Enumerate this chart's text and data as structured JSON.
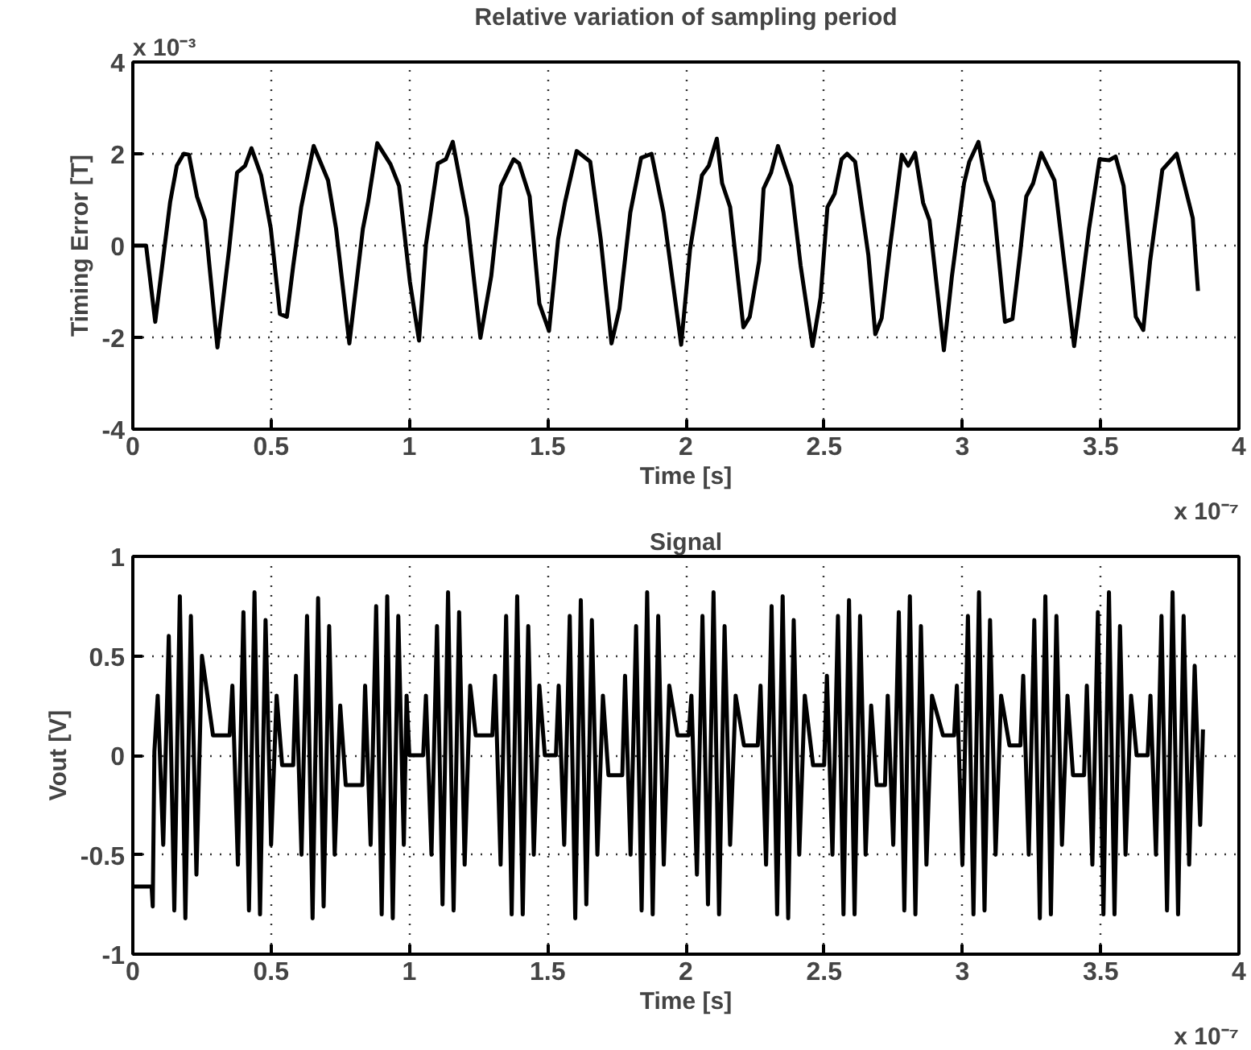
{
  "chart_data": [
    {
      "type": "line",
      "title": "Relative variation of sampling period",
      "xlabel": "Time [s]",
      "ylabel": "Timing Error [T]",
      "annotations": [
        "x 10⁻³",
        "x 10⁻⁷"
      ],
      "xlim": [
        0,
        4
      ],
      "xticks": [
        0,
        0.5,
        1,
        1.5,
        2,
        2.5,
        3,
        3.5,
        4
      ],
      "ylim": [
        -4,
        4
      ],
      "yticks": [
        -4,
        -2,
        0,
        2,
        4
      ],
      "grid": true,
      "line_style": "solid",
      "marker": "none",
      "series": [
        {
          "color": "#000000",
          "x": [
            0,
            0.048,
            0.081,
            0.135,
            0.159,
            0.184,
            0.203,
            0.232,
            0.261,
            0.306,
            0.348,
            0.377,
            0.406,
            0.429,
            0.464,
            0.499,
            0.532,
            0.557,
            0.58,
            0.609,
            0.654,
            0.706,
            0.735,
            0.783,
            0.832,
            0.851,
            0.884,
            0.932,
            0.963,
            1.002,
            1.035,
            1.06,
            1.103,
            1.132,
            1.157,
            1.209,
            1.257,
            1.296,
            1.331,
            1.377,
            1.397,
            1.435,
            1.47,
            1.505,
            1.538,
            1.563,
            1.605,
            1.654,
            1.692,
            1.731,
            1.76,
            1.799,
            1.838,
            1.876,
            1.919,
            1.983,
            2.015,
            2.058,
            2.083,
            2.112,
            2.131,
            2.16,
            2.208,
            2.231,
            2.265,
            2.281,
            2.308,
            2.333,
            2.381,
            2.415,
            2.458,
            2.487,
            2.512,
            2.538,
            2.563,
            2.583,
            2.612,
            2.66,
            2.685,
            2.708,
            2.737,
            2.781,
            2.804,
            2.829,
            2.858,
            2.881,
            2.933,
            2.962,
            3.006,
            3.025,
            3.058,
            3.083,
            3.112,
            3.154,
            3.181,
            3.208,
            3.231,
            3.256,
            3.285,
            3.333,
            3.404,
            3.429,
            3.458,
            3.496,
            3.531,
            3.554,
            3.583,
            3.627,
            3.654,
            3.679,
            3.723,
            3.775,
            3.833,
            3.852
          ],
          "values": [
            0,
            0,
            -1.66,
            0.95,
            1.74,
            2.0,
            1.98,
            1.07,
            0.55,
            -2.22,
            -0.09,
            1.59,
            1.74,
            2.12,
            1.53,
            0.37,
            -1.49,
            -1.55,
            -0.44,
            0.84,
            2.17,
            1.42,
            0.37,
            -2.13,
            0.37,
            0.95,
            2.23,
            1.77,
            1.3,
            -0.79,
            -2.07,
            0.02,
            1.79,
            1.88,
            2.26,
            0.6,
            -2.01,
            -0.67,
            1.3,
            1.88,
            1.79,
            1.07,
            -1.26,
            -1.86,
            0.14,
            0.95,
            2.06,
            1.83,
            0.14,
            -2.13,
            -1.37,
            0.72,
            1.91,
            2.0,
            0.72,
            -2.16,
            -0.09,
            1.53,
            1.74,
            2.33,
            1.36,
            0.84,
            -1.78,
            -1.55,
            -0.33,
            1.24,
            1.59,
            2.17,
            1.3,
            -0.44,
            -2.19,
            -1.14,
            0.84,
            1.13,
            1.88,
            2.0,
            1.83,
            -0.21,
            -1.93,
            -1.58,
            -0.09,
            1.98,
            1.74,
            2.02,
            0.93,
            0.55,
            -2.28,
            -0.67,
            1.36,
            1.83,
            2.26,
            1.42,
            0.95,
            -1.66,
            -1.6,
            -0.21,
            1.07,
            1.36,
            2.02,
            1.42,
            -2.19,
            -1.02,
            0.37,
            1.88,
            1.86,
            1.94,
            1.3,
            -1.55,
            -1.84,
            -0.33,
            1.65,
            2.0,
            0.6,
            -0.99
          ]
        }
      ]
    },
    {
      "type": "line",
      "title": "Signal",
      "xlabel": "Time [s]",
      "ylabel": "Vout [V]",
      "annotations": [
        "x 10⁻⁷"
      ],
      "xlim": [
        0,
        4
      ],
      "xticks": [
        0,
        0.5,
        1,
        1.5,
        2,
        2.5,
        3,
        3.5,
        4
      ],
      "ylim": [
        -1,
        1
      ],
      "yticks": [
        -1,
        -0.5,
        0,
        0.5,
        1
      ],
      "grid": true,
      "line_style": "solid",
      "marker": "none",
      "series": [
        {
          "color": "#000000",
          "x": [
            0,
            0.068,
            0.072,
            0.078,
            0.09,
            0.11,
            0.13,
            0.15,
            0.17,
            0.19,
            0.21,
            0.23,
            0.25,
            0.29,
            0.35,
            0.36,
            0.38,
            0.4,
            0.42,
            0.44,
            0.46,
            0.48,
            0.5,
            0.52,
            0.54,
            0.58,
            0.59,
            0.61,
            0.63,
            0.65,
            0.67,
            0.69,
            0.71,
            0.73,
            0.75,
            0.77,
            0.83,
            0.84,
            0.86,
            0.88,
            0.9,
            0.92,
            0.94,
            0.96,
            0.98,
            0.99,
            1.0,
            1.05,
            1.06,
            1.08,
            1.1,
            1.12,
            1.14,
            1.16,
            1.18,
            1.2,
            1.22,
            1.24,
            1.3,
            1.31,
            1.33,
            1.35,
            1.37,
            1.39,
            1.41,
            1.43,
            1.45,
            1.47,
            1.49,
            1.53,
            1.54,
            1.56,
            1.58,
            1.6,
            1.62,
            1.64,
            1.66,
            1.68,
            1.7,
            1.72,
            1.77,
            1.78,
            1.8,
            1.82,
            1.84,
            1.86,
            1.88,
            1.9,
            1.92,
            1.94,
            1.97,
            2.01,
            2.02,
            2.04,
            2.06,
            2.08,
            2.1,
            2.12,
            2.14,
            2.16,
            2.18,
            2.21,
            2.26,
            2.27,
            2.29,
            2.31,
            2.33,
            2.35,
            2.37,
            2.39,
            2.41,
            2.43,
            2.46,
            2.5,
            2.51,
            2.53,
            2.55,
            2.57,
            2.59,
            2.61,
            2.63,
            2.65,
            2.67,
            2.69,
            2.72,
            2.73,
            2.75,
            2.77,
            2.79,
            2.81,
            2.83,
            2.85,
            2.87,
            2.89,
            2.93,
            2.97,
            2.98,
            3.0,
            3.02,
            3.04,
            3.06,
            3.08,
            3.1,
            3.12,
            3.14,
            3.17,
            3.21,
            3.22,
            3.24,
            3.26,
            3.28,
            3.3,
            3.32,
            3.34,
            3.36,
            3.38,
            3.4,
            3.44,
            3.45,
            3.47,
            3.49,
            3.51,
            3.53,
            3.55,
            3.57,
            3.59,
            3.61,
            3.63,
            3.67,
            3.68,
            3.7,
            3.72,
            3.74,
            3.76,
            3.78,
            3.8,
            3.82,
            3.84,
            3.86,
            3.87
          ],
          "values": [
            -0.66,
            -0.66,
            -0.76,
            0.02,
            0.3,
            -0.45,
            0.6,
            -0.78,
            0.8,
            -0.82,
            0.7,
            -0.6,
            0.5,
            0.1,
            0.1,
            0.35,
            -0.55,
            0.72,
            -0.78,
            0.82,
            -0.8,
            0.68,
            -0.45,
            0.3,
            -0.05,
            -0.05,
            0.4,
            -0.5,
            0.7,
            -0.82,
            0.79,
            -0.76,
            0.65,
            -0.5,
            0.25,
            -0.15,
            -0.15,
            0.35,
            -0.45,
            0.75,
            -0.8,
            0.8,
            -0.82,
            0.7,
            -0.45,
            0.3,
            0.0,
            0.0,
            0.3,
            -0.5,
            0.65,
            -0.75,
            0.82,
            -0.78,
            0.72,
            -0.55,
            0.35,
            0.1,
            0.1,
            0.4,
            -0.55,
            0.7,
            -0.8,
            0.8,
            -0.8,
            0.65,
            -0.5,
            0.35,
            0.0,
            0.0,
            0.35,
            -0.45,
            0.7,
            -0.82,
            0.78,
            -0.75,
            0.68,
            -0.5,
            0.3,
            -0.1,
            -0.1,
            0.4,
            -0.5,
            0.65,
            -0.78,
            0.82,
            -0.8,
            0.7,
            -0.55,
            0.35,
            0.1,
            0.1,
            0.3,
            -0.6,
            0.7,
            -0.75,
            0.82,
            -0.8,
            0.65,
            -0.45,
            0.3,
            0.05,
            0.05,
            0.35,
            -0.55,
            0.75,
            -0.8,
            0.8,
            -0.82,
            0.68,
            -0.5,
            0.3,
            -0.05,
            -0.05,
            0.4,
            -0.5,
            0.7,
            -0.8,
            0.78,
            -0.8,
            0.7,
            -0.5,
            0.25,
            -0.15,
            -0.15,
            0.3,
            -0.45,
            0.72,
            -0.78,
            0.8,
            -0.8,
            0.65,
            -0.55,
            0.3,
            0.1,
            0.1,
            0.35,
            -0.55,
            0.7,
            -0.8,
            0.82,
            -0.78,
            0.68,
            -0.5,
            0.3,
            0.05,
            0.05,
            0.4,
            -0.5,
            0.68,
            -0.82,
            0.8,
            -0.8,
            0.7,
            -0.45,
            0.3,
            -0.1,
            -0.1,
            0.35,
            -0.55,
            0.72,
            -0.8,
            0.82,
            -0.8,
            0.65,
            -0.5,
            0.3,
            0.0,
            0.0,
            0.3,
            -0.5,
            0.7,
            -0.78,
            0.82,
            -0.8,
            0.7,
            -0.55,
            0.45,
            -0.35,
            0.13
          ]
        }
      ]
    }
  ]
}
